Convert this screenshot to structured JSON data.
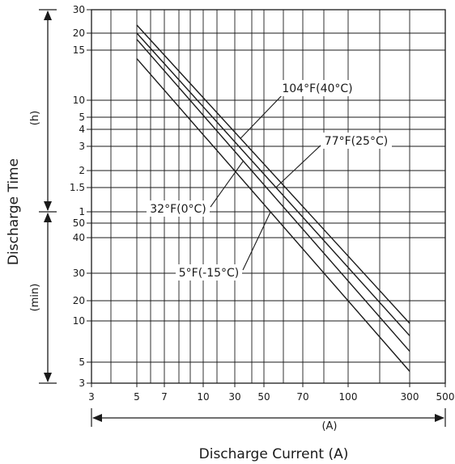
{
  "chart_data": {
    "type": "line",
    "ylabel": "Discharge Time",
    "xlabel": "Discharge Current (A)",
    "x_unit_label": "(A)",
    "y_unit_hours": "(h)",
    "y_unit_minutes": "(min)",
    "xscale": "log",
    "xlim": [
      3,
      500
    ],
    "x_ticks": [
      3,
      5,
      7,
      10,
      30,
      50,
      70,
      100,
      300,
      500
    ],
    "y_ticks": [
      {
        "label": "30",
        "hours": 30
      },
      {
        "label": "20",
        "hours": 20
      },
      {
        "label": "15",
        "hours": 15
      },
      {
        "label": "10",
        "hours": 10
      },
      {
        "label": "5",
        "hours": 5
      },
      {
        "label": "4",
        "hours": 4
      },
      {
        "label": "3",
        "hours": 3
      },
      {
        "label": "2",
        "hours": 2
      },
      {
        "label": "1.5",
        "hours": 1.5
      },
      {
        "label": "1",
        "hours": 1
      },
      {
        "label": "50",
        "minutes": 50
      },
      {
        "label": "40",
        "minutes": 40
      },
      {
        "label": "30",
        "minutes": 30
      },
      {
        "label": "20",
        "minutes": 20
      },
      {
        "label": "10",
        "minutes": 10
      },
      {
        "label": "5",
        "minutes": 5
      },
      {
        "label": "3",
        "minutes": 3
      }
    ],
    "grid": true,
    "series": [
      {
        "name": "104°F(40°C)",
        "x": [
          5,
          300
        ],
        "y_minutes": [
          1380,
          9.6
        ]
      },
      {
        "name": "77°F(25°C)",
        "x": [
          5,
          300
        ],
        "y_minutes": [
          1200,
          7.8
        ]
      },
      {
        "name": "32°F(0°C)",
        "x": [
          5,
          300
        ],
        "y_minutes": [
          1080,
          6.0
        ]
      },
      {
        "name": "5°F(-15°C)",
        "x": [
          5,
          300
        ],
        "y_minutes": [
          840,
          4.0
        ]
      }
    ]
  }
}
